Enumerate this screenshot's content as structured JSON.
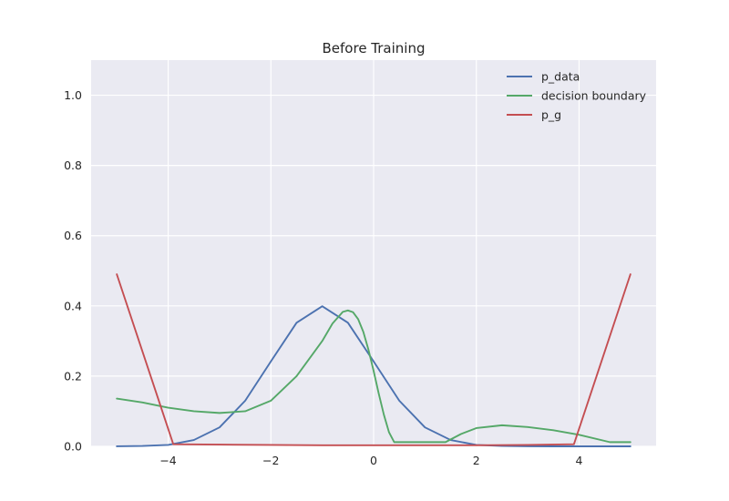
{
  "chart_data": {
    "type": "line",
    "title": "Before Training",
    "xlabel": "",
    "ylabel": "",
    "xlim": [
      -5.5,
      5.5
    ],
    "ylim": [
      0,
      1.1
    ],
    "xticks": [
      -4,
      -2,
      0,
      2,
      4
    ],
    "xtick_labels": [
      "−4",
      "−2",
      "0",
      "2",
      "4"
    ],
    "yticks": [
      0.0,
      0.2,
      0.4,
      0.6,
      0.8,
      1.0
    ],
    "ytick_labels": [
      "0.0",
      "0.2",
      "0.4",
      "0.6",
      "0.8",
      "1.0"
    ],
    "grid": true,
    "legend_placement": "top-right",
    "colors": {
      "background": "#EAEAF2",
      "grid": "#FFFFFF"
    },
    "series": [
      {
        "name": "p_data",
        "color": "#4C72B0",
        "x": [
          -5,
          -4.5,
          -4,
          -3.5,
          -3,
          -2.5,
          -2,
          -1.5,
          -1,
          -0.5,
          0,
          0.5,
          1,
          1.5,
          2,
          2.5,
          3,
          3.5,
          4,
          4.5,
          5
        ],
        "y": [
          0.0001,
          0.001,
          0.004,
          0.018,
          0.054,
          0.13,
          0.242,
          0.352,
          0.399,
          0.352,
          0.242,
          0.13,
          0.054,
          0.018,
          0.004,
          0.001,
          0.0001,
          0.0,
          0.0,
          0.0,
          0.0
        ]
      },
      {
        "name": "decision boundary",
        "color": "#55A868",
        "x": [
          -5,
          -4.5,
          -4,
          -3.5,
          -3,
          -2.5,
          -2,
          -1.5,
          -1.2,
          -1,
          -0.8,
          -0.6,
          -0.5,
          -0.4,
          -0.3,
          -0.2,
          -0.1,
          0,
          0.1,
          0.2,
          0.3,
          0.4,
          0.6,
          1.0,
          1.4,
          1.7,
          2.0,
          2.5,
          3.0,
          3.5,
          4.0,
          4.6,
          5.0
        ],
        "y": [
          0.136,
          0.125,
          0.11,
          0.1,
          0.095,
          0.1,
          0.13,
          0.2,
          0.26,
          0.3,
          0.35,
          0.383,
          0.387,
          0.382,
          0.362,
          0.326,
          0.275,
          0.215,
          0.15,
          0.09,
          0.04,
          0.012,
          0.012,
          0.012,
          0.012,
          0.035,
          0.052,
          0.06,
          0.055,
          0.046,
          0.033,
          0.012,
          0.012
        ]
      },
      {
        "name": "p_g",
        "color": "#C44E52",
        "x": [
          -5,
          -3.9,
          -3,
          -2,
          -1,
          0,
          1,
          2,
          3,
          3.9,
          5
        ],
        "y": [
          0.49,
          0.006,
          0.005,
          0.004,
          0.003,
          0.003,
          0.003,
          0.003,
          0.004,
          0.006,
          0.49
        ]
      }
    ]
  }
}
